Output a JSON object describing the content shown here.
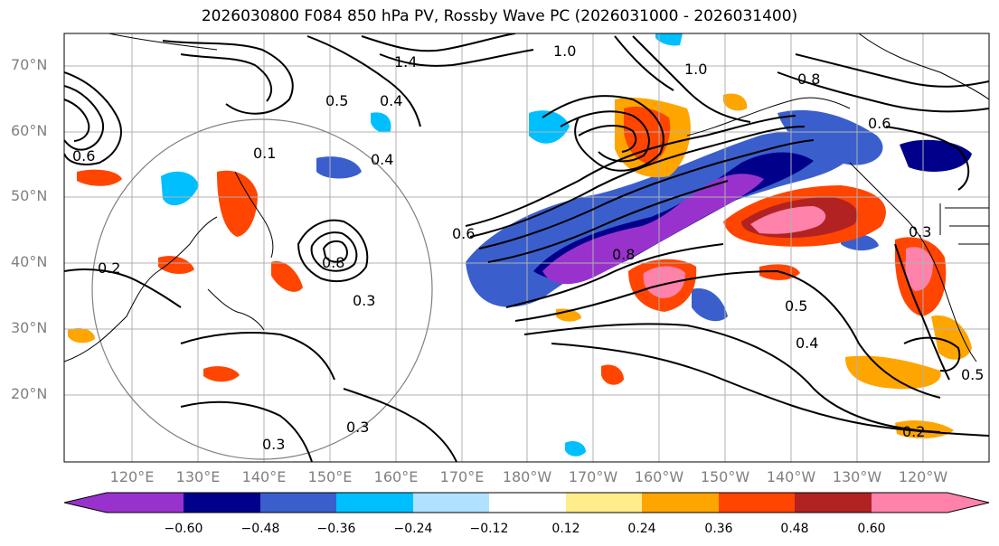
{
  "title": "2026030800 F084 850 hPa PV, Rossby Wave PC (2026031000 - 2026031400)",
  "lat_labels": [
    "70°N",
    "60°N",
    "50°N",
    "40°N",
    "30°N",
    "20°N"
  ],
  "lon_labels": [
    "120°E",
    "130°E",
    "140°E",
    "150°E",
    "160°E",
    "170°E",
    "180°W",
    "170°W",
    "160°W",
    "150°W",
    "140°W",
    "130°W",
    "120°W"
  ],
  "colorbar": {
    "tick_labels": [
      "−0.60",
      "−0.48",
      "−0.36",
      "−0.24",
      "−0.12",
      "0.12",
      "0.24",
      "0.36",
      "0.48",
      "0.60"
    ],
    "colors": [
      "#9932CC",
      "#00008B",
      "#3A5FCD",
      "#00BFFF",
      "#B0E2FF",
      "#FFFFFF",
      "#FFEC8B",
      "#FFA500",
      "#FF4500",
      "#B22222",
      "#FF82AB"
    ]
  },
  "contour_labels": [
    "0.2",
    "0.3",
    "0.3",
    "0.3",
    "0.4",
    "0.4",
    "0.5",
    "0.5",
    "0.6",
    "0.6",
    "0.8",
    "0.8",
    "1.0",
    "1.0",
    "1.4",
    "0.1",
    "0.4",
    "0.5",
    "0.2",
    "0.3",
    "0.6",
    "0.8"
  ]
}
